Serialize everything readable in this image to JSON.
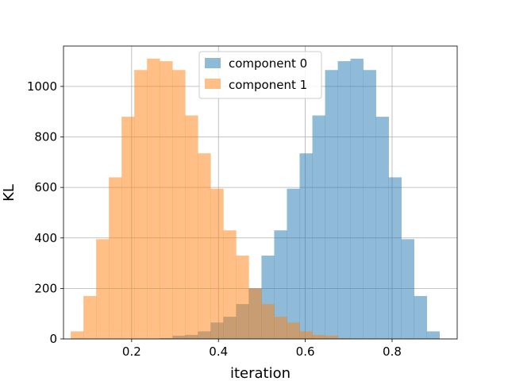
{
  "chart_data": {
    "type": "bar",
    "subtype": "histogram",
    "xlabel": "iteration",
    "ylabel": "KL",
    "xlim": [
      0.043,
      0.95
    ],
    "ylim": [
      0,
      1160
    ],
    "xticks": [
      0.2,
      0.4,
      0.6,
      0.8
    ],
    "xtick_labels": [
      "0.2",
      "0.4",
      "0.6",
      "0.8"
    ],
    "yticks": [
      0,
      200,
      400,
      600,
      800,
      1000
    ],
    "ytick_labels": [
      "0",
      "200",
      "400",
      "600",
      "800",
      "1000"
    ],
    "grid": true,
    "legend_position": "upper center",
    "series": [
      {
        "name": "component 0",
        "color": "#1f77b4",
        "alpha": 0.5,
        "bin_edges": [
          0.0596,
          0.0889,
          0.1182,
          0.1475,
          0.1768,
          0.2061,
          0.2354,
          0.2647,
          0.294,
          0.3233,
          0.3526,
          0.3819,
          0.4112,
          0.4405,
          0.4698,
          0.4991,
          0.5284,
          0.5577,
          0.587,
          0.6163,
          0.6456,
          0.6749,
          0.7042,
          0.7335,
          0.7628,
          0.7921,
          0.8214,
          0.8507,
          0.88,
          0.9093,
          0.9386
        ],
        "counts": [
          0,
          0,
          0,
          0,
          0,
          0,
          0,
          3,
          13,
          16,
          30,
          65,
          88,
          138,
          200,
          330,
          430,
          595,
          735,
          885,
          1065,
          1100,
          1110,
          1065,
          880,
          640,
          395,
          170,
          30,
          0
        ]
      },
      {
        "name": "component 1",
        "color": "#ff7f0e",
        "alpha": 0.5,
        "bin_edges": [
          0.0596,
          0.0889,
          0.1182,
          0.1475,
          0.1768,
          0.2061,
          0.2354,
          0.2647,
          0.294,
          0.3233,
          0.3526,
          0.3819,
          0.4112,
          0.4405,
          0.4698,
          0.4991,
          0.5284,
          0.5577,
          0.587,
          0.6163,
          0.6456,
          0.6749,
          0.7042,
          0.7335,
          0.7628,
          0.7921,
          0.8214,
          0.8507,
          0.88,
          0.9093,
          0.9386
        ],
        "counts": [
          30,
          170,
          395,
          640,
          880,
          1065,
          1110,
          1100,
          1065,
          885,
          735,
          595,
          430,
          330,
          200,
          138,
          88,
          65,
          30,
          16,
          13,
          3,
          0,
          0,
          0,
          0,
          0,
          0,
          0,
          0
        ]
      }
    ]
  }
}
